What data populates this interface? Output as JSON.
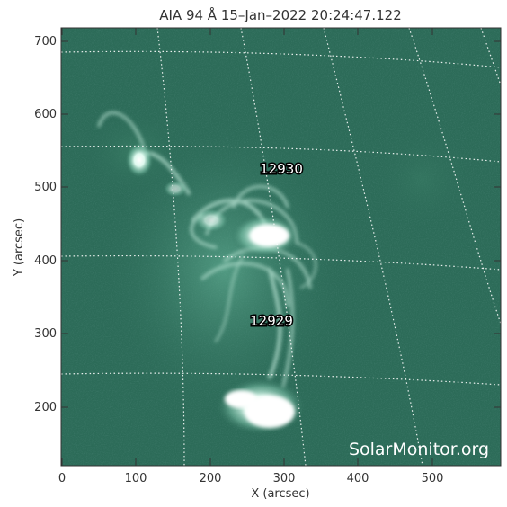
{
  "title": "AIA 94 Å 15–Jan–2022 20:24:47.122",
  "x_axis": {
    "label": "X (arcsec)",
    "ticks": [
      "0",
      "100",
      "200",
      "300",
      "400",
      "500"
    ]
  },
  "y_axis": {
    "label": "Y (arcsec)",
    "ticks": [
      "200",
      "300",
      "400",
      "500",
      "600",
      "700"
    ]
  },
  "active_regions": [
    {
      "number": "12930"
    },
    {
      "number": "12929"
    }
  ],
  "watermark": "SolarMonitor.org",
  "colors": {
    "background": "#2c6b58",
    "bright": "#e8fff6",
    "grid": "#ffffff",
    "frame": "#333333"
  }
}
